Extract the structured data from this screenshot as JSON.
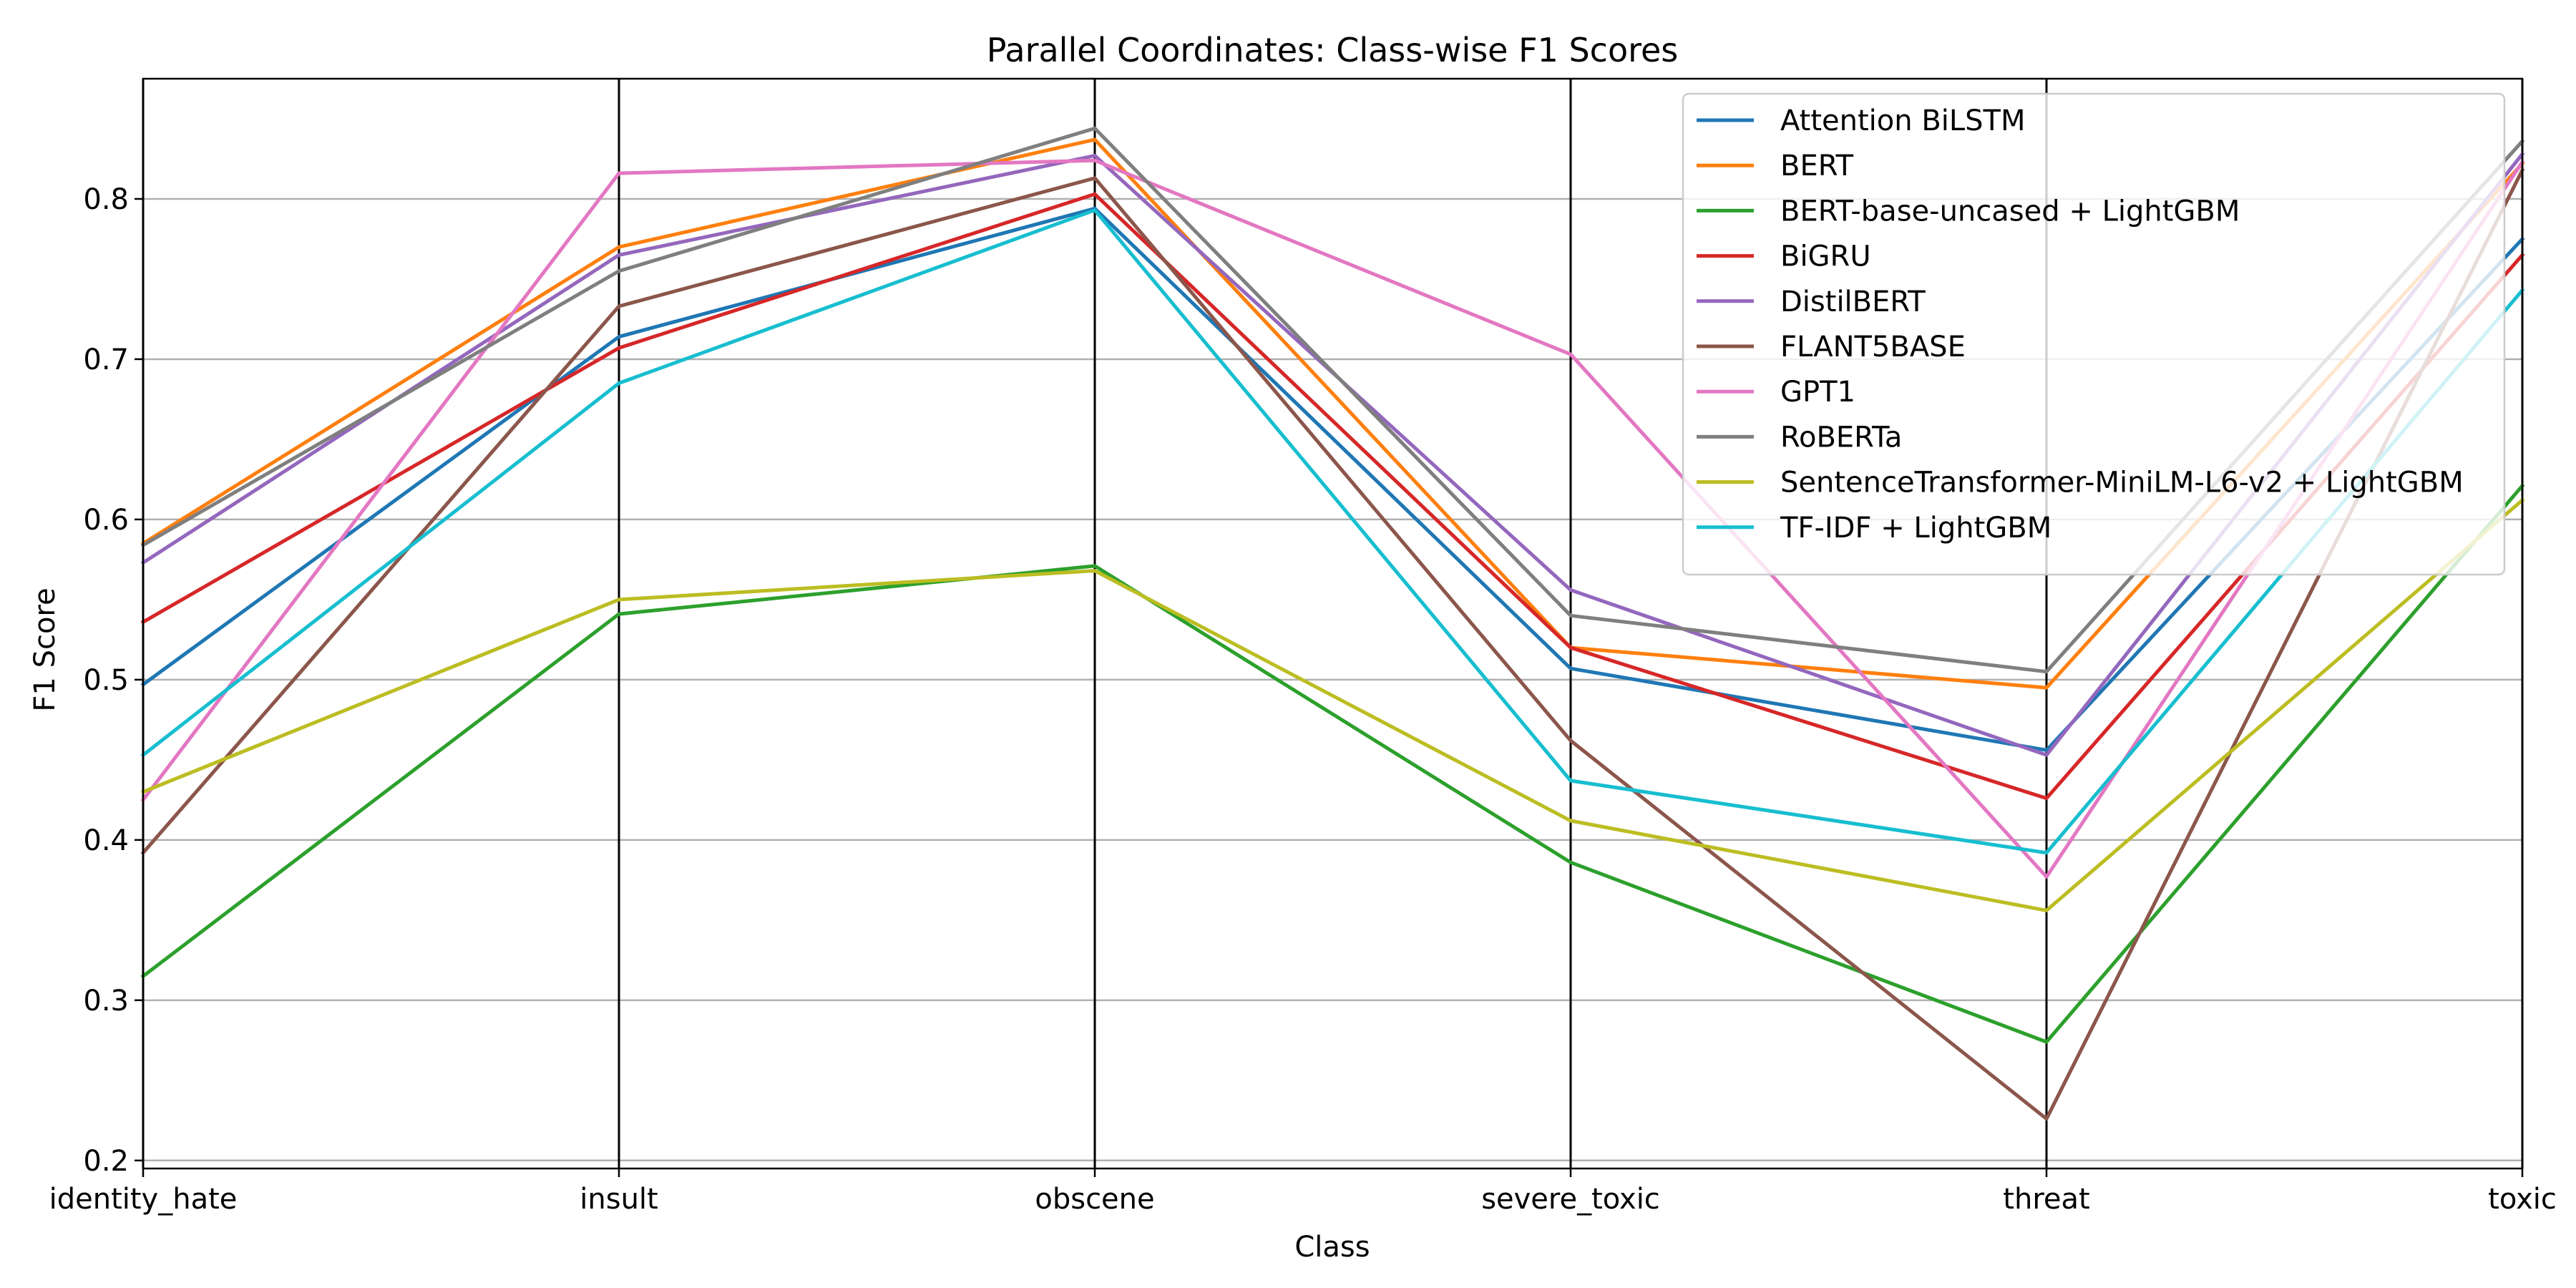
{
  "chart_data": {
    "type": "line",
    "subtype": "parallel-coordinates",
    "title": "Parallel Coordinates: Class-wise F1 Scores",
    "xlabel": "Class",
    "ylabel": "F1 Score",
    "categories": [
      "identity_hate",
      "insult",
      "obscene",
      "severe_toxic",
      "threat",
      "toxic"
    ],
    "ylim": [
      0.195,
      0.875
    ],
    "yticks": [
      "0.2",
      "0.3",
      "0.4",
      "0.5",
      "0.6",
      "0.7",
      "0.8"
    ],
    "grid": "horizontal",
    "legend_position": "top-right",
    "series": [
      {
        "name": "Attention BiLSTM",
        "color": "#1f77b4",
        "values": [
          0.497,
          0.714,
          0.794,
          0.507,
          0.456,
          0.775
        ]
      },
      {
        "name": "BERT",
        "color": "#ff7f0e",
        "values": [
          0.585,
          0.77,
          0.837,
          0.52,
          0.495,
          0.822
        ]
      },
      {
        "name": "BERT-base-uncased + LightGBM",
        "color": "#2ca02c",
        "values": [
          0.315,
          0.541,
          0.571,
          0.386,
          0.274,
          0.621
        ]
      },
      {
        "name": "BiGRU",
        "color": "#d62728",
        "values": [
          0.536,
          0.707,
          0.803,
          0.52,
          0.426,
          0.765
        ]
      },
      {
        "name": "DistilBERT",
        "color": "#9467bd",
        "values": [
          0.573,
          0.765,
          0.827,
          0.556,
          0.453,
          0.828
        ]
      },
      {
        "name": "FLANT5BASE",
        "color": "#8c564b",
        "values": [
          0.392,
          0.733,
          0.813,
          0.462,
          0.226,
          0.818
        ]
      },
      {
        "name": "GPT1",
        "color": "#e377c2",
        "values": [
          0.425,
          0.816,
          0.824,
          0.703,
          0.377,
          0.823
        ]
      },
      {
        "name": "RoBERTa",
        "color": "#7f7f7f",
        "values": [
          0.584,
          0.755,
          0.844,
          0.54,
          0.505,
          0.836
        ]
      },
      {
        "name": "SentenceTransformer-MiniLM-L6-v2 + LightGBM",
        "color": "#bcbd22",
        "values": [
          0.43,
          0.55,
          0.568,
          0.412,
          0.356,
          0.612
        ]
      },
      {
        "name": "TF-IDF + LightGBM",
        "color": "#17becf",
        "values": [
          0.453,
          0.685,
          0.793,
          0.437,
          0.392,
          0.743
        ]
      }
    ]
  }
}
